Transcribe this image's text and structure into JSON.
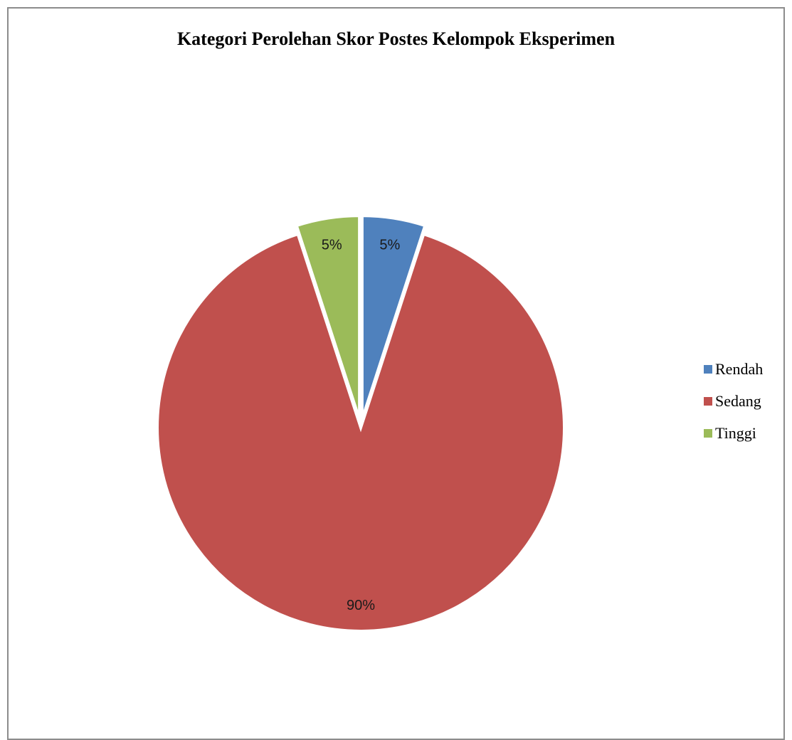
{
  "chart_data": {
    "type": "pie",
    "title": "Kategori Perolehan Skor Postes Kelompok Eksperimen",
    "categories": [
      "Rendah",
      "Sedang",
      "Tinggi"
    ],
    "values": [
      5,
      90,
      5
    ],
    "data_labels": [
      "5%",
      "90%",
      "5%"
    ],
    "colors": [
      "#4f81bd",
      "#c0504d",
      "#9bbb59"
    ],
    "exploded": true,
    "legend_position": "right"
  }
}
